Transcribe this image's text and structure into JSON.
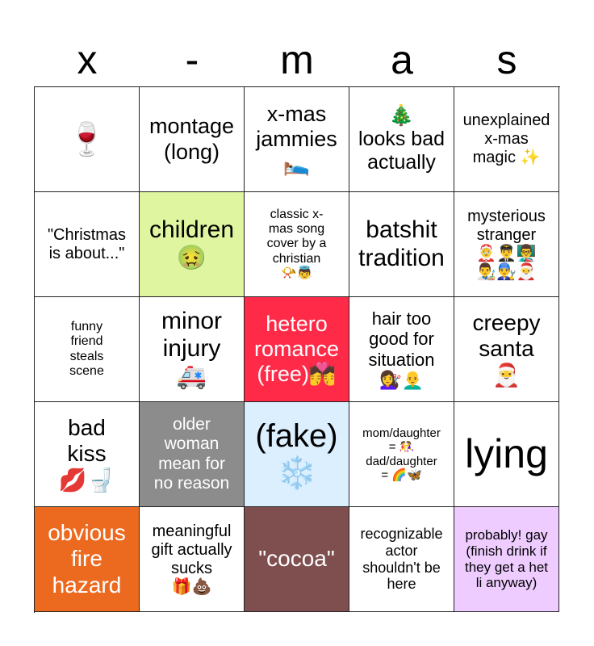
{
  "header": [
    "x",
    "-",
    "m",
    "a",
    "s"
  ],
  "cells": [
    {
      "text": "🍷",
      "bg": "#ffffff",
      "color": "#000000"
    },
    {
      "text": "montage\n(long)",
      "bg": "#ffffff",
      "color": "#000000"
    },
    {
      "text": "x-mas\njammies\n🛌",
      "bg": "#ffffff",
      "color": "#000000"
    },
    {
      "text": "🎄\nlooks bad\nactually",
      "bg": "#ffffff",
      "color": "#000000"
    },
    {
      "text": "unexplained\nx-mas\nmagic ✨",
      "bg": "#ffffff",
      "color": "#000000"
    },
    {
      "text": "\"Christmas\nis about...\"",
      "bg": "#ffffff",
      "color": "#000000"
    },
    {
      "text": "children\n🤢",
      "bg": "#e0f5a0",
      "color": "#000000"
    },
    {
      "text": "classic x-\nmas song\ncover by a\nchristian\n📯👼",
      "bg": "#ffffff",
      "color": "#000000"
    },
    {
      "text": "batshit\ntradition",
      "bg": "#ffffff",
      "color": "#000000"
    },
    {
      "text": "mysterious\nstranger\n🤶👨‍✈️👨‍🏫\n👨‍🎨👨‍🔧🎅",
      "bg": "#ffffff",
      "color": "#000000"
    },
    {
      "text": "funny\nfriend\nsteals\nscene",
      "bg": "#ffffff",
      "color": "#000000"
    },
    {
      "text": "minor\ninjury\n🚑",
      "bg": "#ffffff",
      "color": "#000000"
    },
    {
      "text": "hetero\nromance\n(free)💏",
      "bg": "#ff2a48",
      "color": "#ffffff"
    },
    {
      "text": "hair too\ngood for\nsituation\n💇‍♀️👨‍🦲",
      "bg": "#ffffff",
      "color": "#000000"
    },
    {
      "text": "creepy\nsanta\n🎅",
      "bg": "#ffffff",
      "color": "#000000"
    },
    {
      "text": "bad\nkiss\n💋🚽",
      "bg": "#ffffff",
      "color": "#000000"
    },
    {
      "text": "older\nwoman\nmean for\nno reason",
      "bg": "#8c8c8c",
      "color": "#ffffff"
    },
    {
      "text": "(fake)\n❄️",
      "bg": "#dcefff",
      "color": "#000000"
    },
    {
      "text": "mom/daughter\n= 🤼‍♀️\ndad/daughter\n= 🌈🦋",
      "bg": "#ffffff",
      "color": "#000000"
    },
    {
      "text": "lying",
      "bg": "#ffffff",
      "color": "#000000"
    },
    {
      "text": "obvious\nfire\nhazard",
      "bg": "#ec6a1f",
      "color": "#ffffff"
    },
    {
      "text": "meaningful\ngift actually\nsucks\n🎁💩",
      "bg": "#ffffff",
      "color": "#000000"
    },
    {
      "text": "\"cocoa\"",
      "bg": "#7f4f4f",
      "color": "#ffffff"
    },
    {
      "text": "recognizable\nactor\nshouldn't be\nhere",
      "bg": "#ffffff",
      "color": "#000000"
    },
    {
      "text": "probably! gay\n(finish drink if\nthey get a het\nli anyway)",
      "bg": "#eeccff",
      "color": "#000000"
    }
  ]
}
